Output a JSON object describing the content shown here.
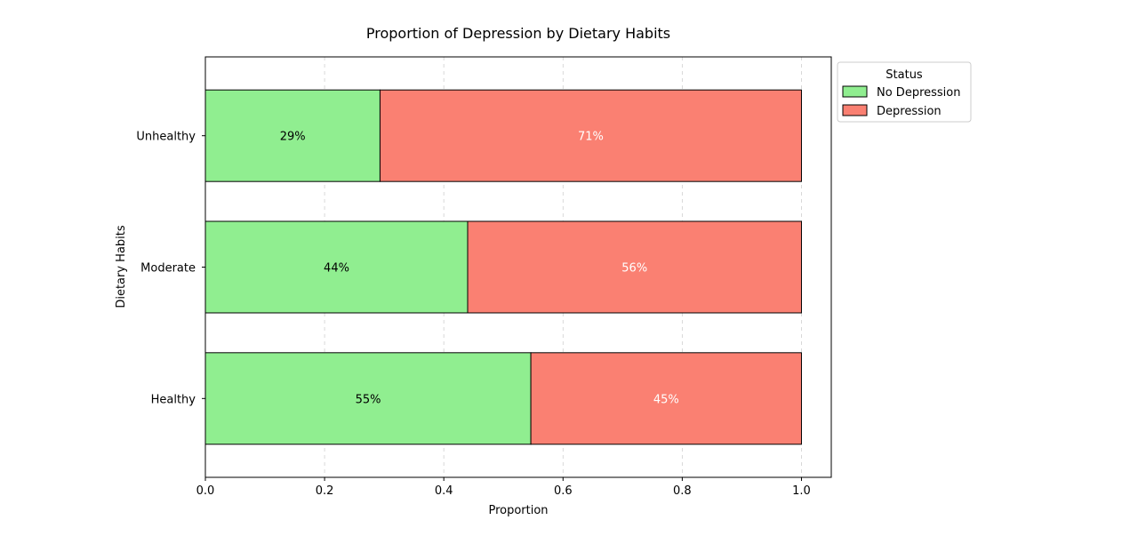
{
  "chart_data": {
    "type": "bar",
    "orientation": "horizontal",
    "stacked": true,
    "title": "Proportion of Depression by Dietary Habits",
    "xlabel": "Proportion",
    "ylabel": "Dietary Habits",
    "xlim": [
      0,
      1.05
    ],
    "x_ticks": [
      "0.0",
      "0.2",
      "0.4",
      "0.6",
      "0.8",
      "1.0"
    ],
    "grid": "x, dashed",
    "categories": [
      "Healthy",
      "Moderate",
      "Unhealthy"
    ],
    "series": [
      {
        "name": "No Depression",
        "values": [
          0.546,
          0.44,
          0.293
        ],
        "labels": [
          "55%",
          "44%",
          "29%"
        ],
        "color": "#90ee90",
        "label_color": "#000000"
      },
      {
        "name": "Depression",
        "values": [
          0.454,
          0.56,
          0.707
        ],
        "labels": [
          "45%",
          "56%",
          "71%"
        ],
        "color": "#fa8072",
        "label_color": "#ffffff"
      }
    ],
    "legend": {
      "title": "Status",
      "position": "outside upper-right"
    }
  }
}
